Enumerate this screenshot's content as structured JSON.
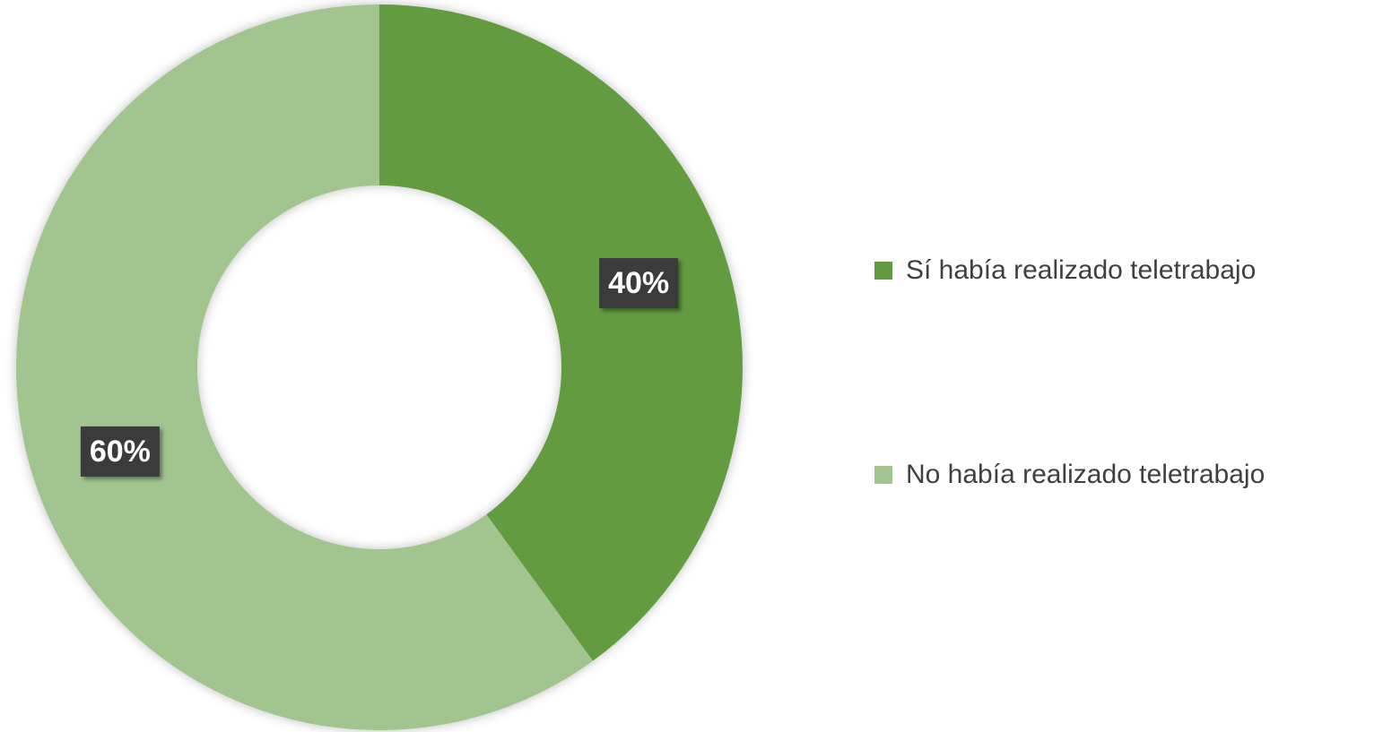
{
  "chart_data": {
    "type": "donut",
    "categories": [
      "Sí había realizado teletrabajo",
      "No había realizado teletrabajo"
    ],
    "values": [
      40,
      60
    ],
    "value_labels": [
      "40%",
      "60%"
    ],
    "colors": [
      "#629b3f",
      "#a2c48f"
    ],
    "legend": "right"
  }
}
